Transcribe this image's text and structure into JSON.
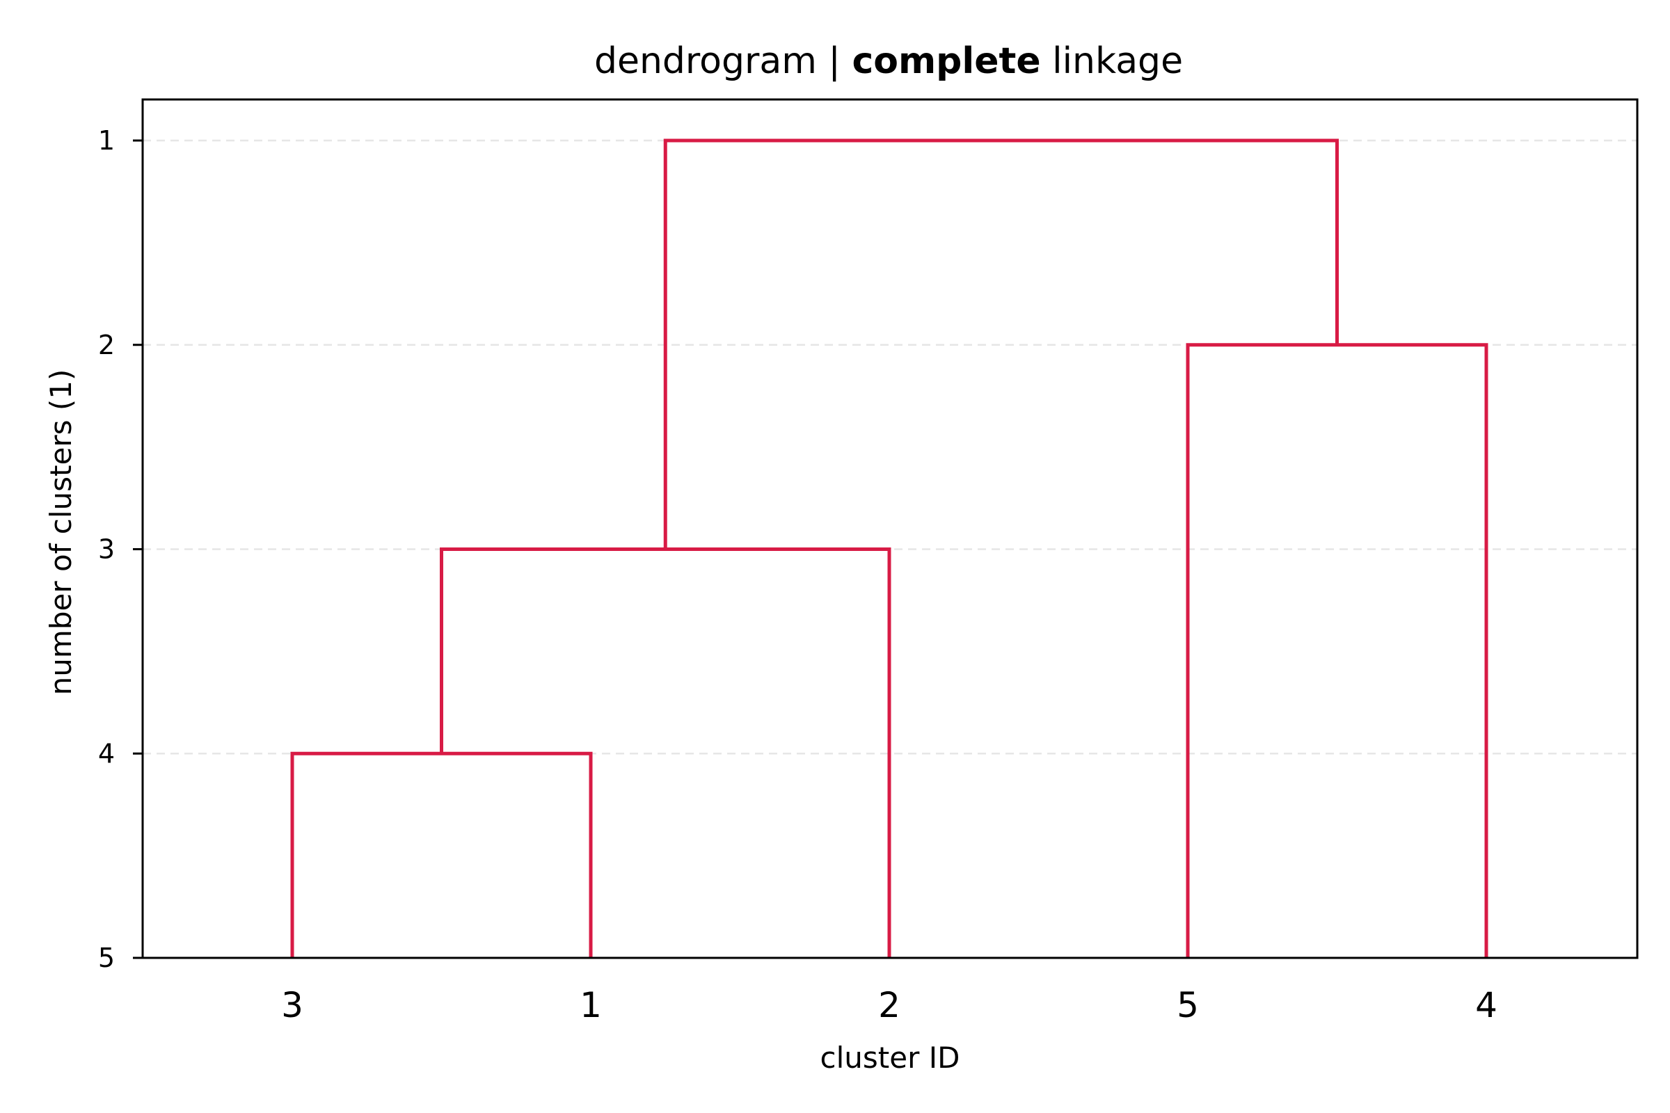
{
  "chart_data": {
    "type": "dendrogram",
    "title_parts": [
      "dendrogram | ",
      "complete",
      " linkage"
    ],
    "xlabel": "cluster ID",
    "ylabel": "number of clusters (1)",
    "leaves": [
      "3",
      "1",
      "2",
      "5",
      "4"
    ],
    "y_ticks": [
      1,
      2,
      3,
      4,
      5
    ],
    "ylim": [
      5,
      1
    ],
    "grid": "horizontal dashed",
    "link_color": "#d81b45",
    "merges": [
      {
        "left": "3",
        "right": "1",
        "level": 4
      },
      {
        "left": "3+1",
        "right": "2",
        "level": 3
      },
      {
        "left": "5",
        "right": "4",
        "level": 2
      },
      {
        "left": "3+1+2",
        "right": "5+4",
        "level": 1
      }
    ]
  }
}
